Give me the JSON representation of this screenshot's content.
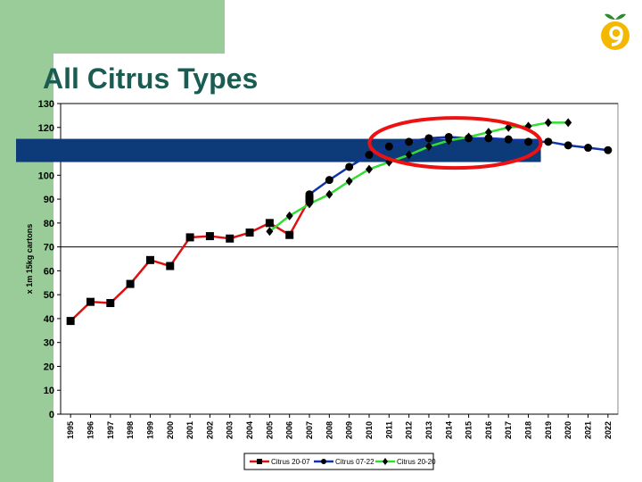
{
  "slide": {
    "title": "All Citrus Types"
  },
  "logo": {
    "icon": "orange-fruit-logo-icon"
  },
  "chart_data": {
    "type": "line",
    "title": "",
    "xlabel": "",
    "ylabel": "x 1m 15kg cartons",
    "ylim": [
      0,
      130
    ],
    "yticks": [
      0,
      10,
      20,
      30,
      40,
      50,
      60,
      70,
      80,
      90,
      100,
      110,
      120,
      130
    ],
    "categories": [
      "1995",
      "1996",
      "1997",
      "1998",
      "1999",
      "2000",
      "2001",
      "2002",
      "2003",
      "2004",
      "2005",
      "2006",
      "2007",
      "2008",
      "2009",
      "2010",
      "2011",
      "2012",
      "2013",
      "2014",
      "2015",
      "2016",
      "2017",
      "2018",
      "2019",
      "2020",
      "2021",
      "2022"
    ],
    "grid": "horizontal lines at 70 and 130 only",
    "legend_position": "bottom",
    "series": [
      {
        "name": "Citrus 20-07",
        "color": "#dd1111",
        "marker": "square",
        "values": [
          39,
          47,
          46.5,
          54.5,
          64.5,
          62,
          74,
          74.5,
          73.5,
          76,
          80,
          75,
          90,
          null,
          null,
          null,
          null,
          null,
          null,
          null,
          null,
          null,
          null,
          null,
          null,
          null,
          null,
          null
        ]
      },
      {
        "name": "Citrus 07-22",
        "color": "#1133aa",
        "marker": "circle",
        "values": [
          null,
          null,
          null,
          null,
          null,
          null,
          null,
          null,
          null,
          null,
          null,
          null,
          92,
          98,
          103.5,
          108.5,
          112,
          114,
          115.5,
          116,
          115.5,
          115.5,
          115,
          114,
          114,
          112.5,
          111.5,
          110.5
        ]
      },
      {
        "name": "Citrus 20-20",
        "color": "#33dd33",
        "marker": "diamond",
        "values": [
          null,
          null,
          null,
          null,
          null,
          null,
          null,
          null,
          null,
          null,
          76.5,
          83,
          88,
          92,
          97.5,
          102.5,
          105.5,
          108.5,
          112,
          114.5,
          116,
          118,
          120,
          120.5,
          122,
          122,
          null,
          null
        ]
      }
    ],
    "highlight_band": {
      "y_value": 110,
      "color": "#0d3a78"
    },
    "highlight_ellipse": {
      "color": "#ee1111",
      "encloses_years": [
        "2011",
        "2018"
      ]
    }
  }
}
